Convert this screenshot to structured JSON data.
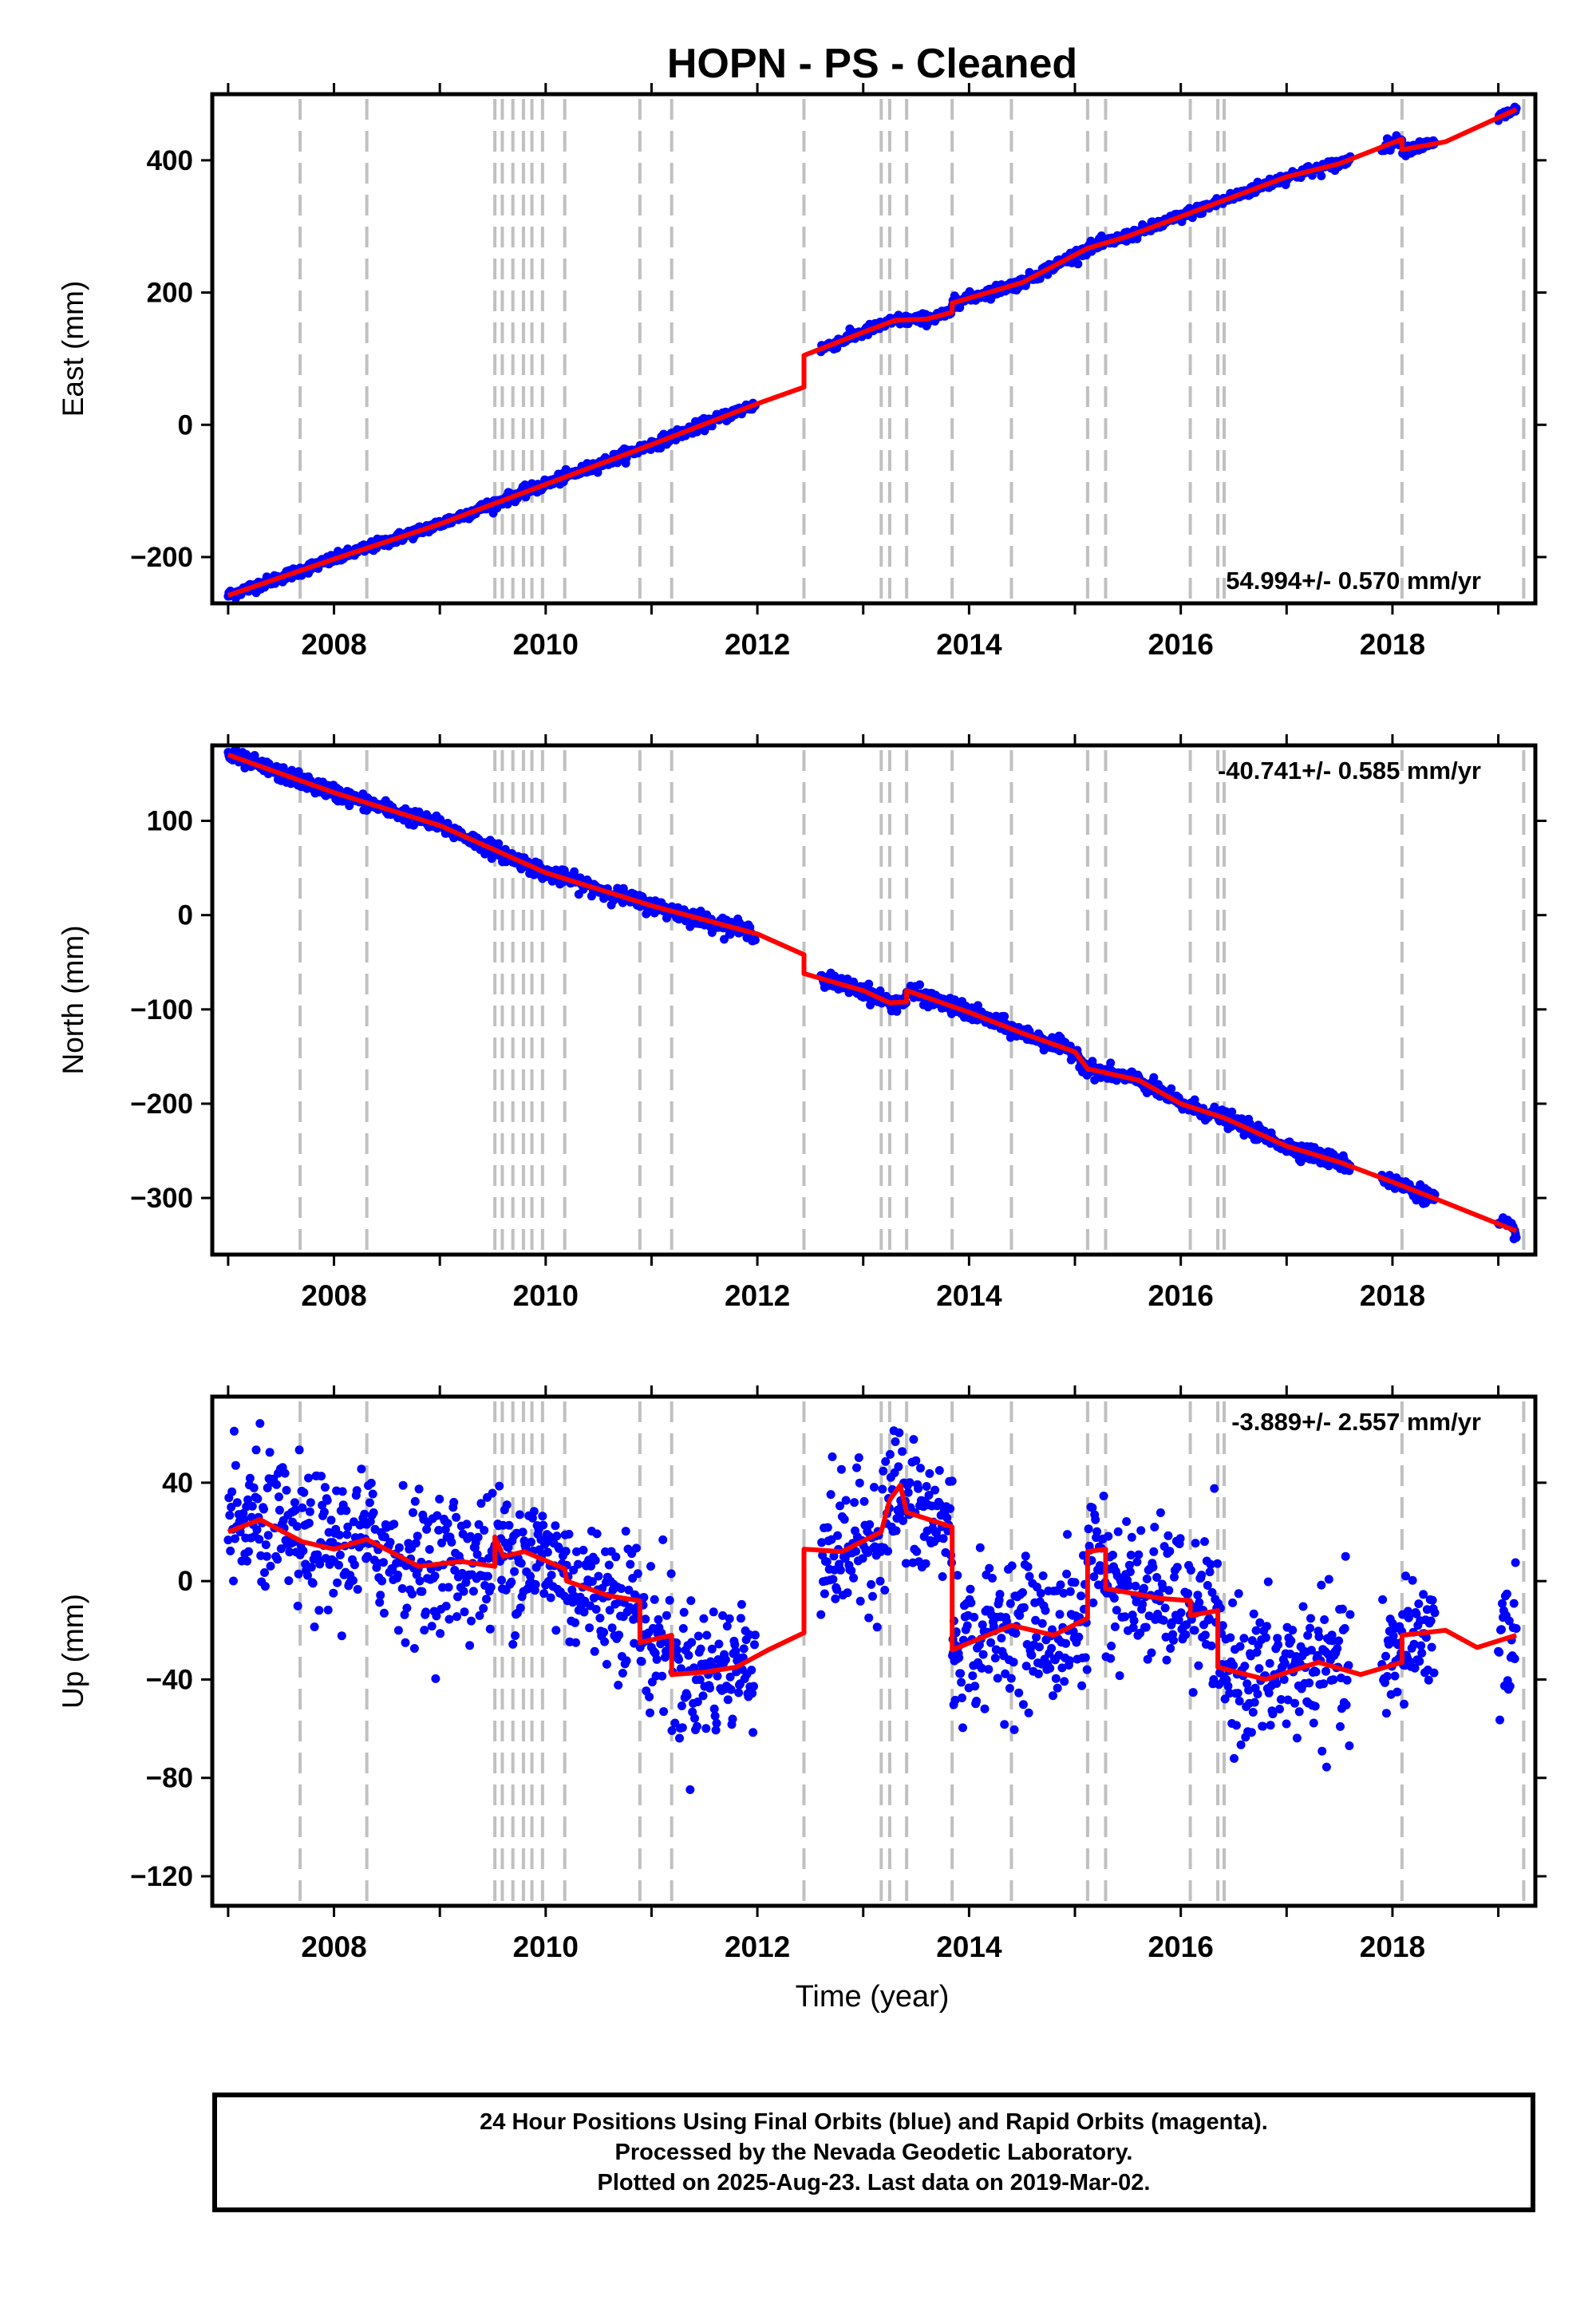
{
  "title": "HOPN  - PS - Cleaned",
  "x_label": "Time (year)",
  "footer": {
    "line1": "24 Hour Positions Using Final Orbits (blue) and Rapid Orbits (magenta).",
    "line2": "Processed by the Nevada Geodetic Laboratory.",
    "line3": "Plotted on 2025-Aug-23. Last data on 2019-Mar-02."
  },
  "colors": {
    "points": "#0000ff",
    "model": "#ff0000",
    "event_lines": "#c0c0c0",
    "frame": "#000000"
  },
  "chart_data": [
    {
      "type": "scatter",
      "ylabel": "East (mm)",
      "rate_label": "54.994+/- 0.570 mm/yr",
      "rate_position": "bottom-right",
      "xlim": [
        2006.85,
        2019.35
      ],
      "ylim": [
        -270,
        500
      ],
      "xticks": [
        2008,
        2010,
        2012,
        2014,
        2016,
        2018
      ],
      "yticks": [
        -200,
        0,
        200,
        400
      ],
      "grid": false,
      "event_lines": [
        2007.68,
        2008.31,
        2009.52,
        2009.59,
        2009.69,
        2009.79,
        2009.87,
        2009.97,
        2010.18,
        2010.89,
        2011.19,
        2012.44,
        2013.17,
        2013.25,
        2013.41,
        2013.84,
        2014.4,
        2015.12,
        2015.29,
        2016.09,
        2016.35,
        2016.41,
        2018.09,
        2019.24
      ],
      "model": [
        {
          "x": 2007.0,
          "y": -258
        },
        {
          "x": 2008.0,
          "y": -203
        },
        {
          "x": 2009.0,
          "y": -150
        },
        {
          "x": 2010.0,
          "y": -90
        },
        {
          "x": 2011.0,
          "y": -30
        },
        {
          "x": 2012.0,
          "y": 32
        },
        {
          "x": 2012.44,
          "y": 57
        },
        {
          "x": 2012.44,
          "y": 105
        },
        {
          "x": 2013.0,
          "y": 140
        },
        {
          "x": 2013.3,
          "y": 158
        },
        {
          "x": 2013.6,
          "y": 160
        },
        {
          "x": 2013.84,
          "y": 170
        },
        {
          "x": 2013.84,
          "y": 184
        },
        {
          "x": 2014.5,
          "y": 215
        },
        {
          "x": 2015.12,
          "y": 267
        },
        {
          "x": 2015.5,
          "y": 285
        },
        {
          "x": 2016.0,
          "y": 315
        },
        {
          "x": 2016.5,
          "y": 345
        },
        {
          "x": 2017.0,
          "y": 375
        },
        {
          "x": 2017.5,
          "y": 395
        },
        {
          "x": 2018.09,
          "y": 432
        },
        {
          "x": 2018.09,
          "y": 416
        },
        {
          "x": 2018.5,
          "y": 428
        },
        {
          "x": 2019.17,
          "y": 477
        }
      ],
      "data_ranges": [
        [
          2007.0,
          2011.98
        ],
        [
          2012.6,
          2013.9
        ],
        [
          2013.84,
          2017.6
        ],
        [
          2017.9,
          2018.4
        ],
        [
          2019.0,
          2019.17
        ]
      ],
      "scatter_sigma": 4
    },
    {
      "type": "scatter",
      "ylabel": "North (mm)",
      "rate_label": "-40.741+/- 0.585 mm/yr",
      "rate_position": "top-right",
      "xlim": [
        2006.85,
        2019.35
      ],
      "ylim": [
        -360,
        180
      ],
      "xticks": [
        2008,
        2010,
        2012,
        2014,
        2016,
        2018
      ],
      "yticks": [
        -300,
        -200,
        -100,
        0,
        100
      ],
      "grid": false,
      "event_lines": [
        2007.68,
        2008.31,
        2009.52,
        2009.59,
        2009.69,
        2009.79,
        2009.87,
        2009.97,
        2010.18,
        2010.89,
        2011.19,
        2012.44,
        2013.17,
        2013.25,
        2013.41,
        2013.84,
        2014.4,
        2015.12,
        2015.29,
        2016.09,
        2016.35,
        2016.41,
        2018.09,
        2019.24
      ],
      "model": [
        {
          "x": 2007.0,
          "y": 170
        },
        {
          "x": 2008.0,
          "y": 130
        },
        {
          "x": 2009.0,
          "y": 95
        },
        {
          "x": 2010.0,
          "y": 45
        },
        {
          "x": 2011.0,
          "y": 10
        },
        {
          "x": 2012.0,
          "y": -20
        },
        {
          "x": 2012.44,
          "y": -42
        },
        {
          "x": 2012.44,
          "y": -62
        },
        {
          "x": 2013.0,
          "y": -80
        },
        {
          "x": 2013.25,
          "y": -93
        },
        {
          "x": 2013.41,
          "y": -92
        },
        {
          "x": 2013.41,
          "y": -80
        },
        {
          "x": 2014.0,
          "y": -103
        },
        {
          "x": 2014.5,
          "y": -125
        },
        {
          "x": 2015.0,
          "y": -145
        },
        {
          "x": 2015.12,
          "y": -163
        },
        {
          "x": 2015.6,
          "y": -175
        },
        {
          "x": 2016.0,
          "y": -200
        },
        {
          "x": 2016.41,
          "y": -215
        },
        {
          "x": 2017.0,
          "y": -245
        },
        {
          "x": 2017.5,
          "y": -262
        },
        {
          "x": 2018.0,
          "y": -283
        },
        {
          "x": 2018.5,
          "y": -305
        },
        {
          "x": 2019.17,
          "y": -335
        }
      ],
      "data_ranges": [
        [
          2007.0,
          2011.98
        ],
        [
          2012.6,
          2013.9
        ],
        [
          2013.84,
          2017.6
        ],
        [
          2017.9,
          2018.4
        ],
        [
          2019.0,
          2019.17
        ]
      ],
      "scatter_sigma": 4
    },
    {
      "type": "scatter",
      "ylabel": "Up (mm)",
      "rate_label": "-3.889+/- 2.557 mm/yr",
      "rate_position": "top-right",
      "xlim": [
        2006.85,
        2019.35
      ],
      "ylim": [
        -132,
        75
      ],
      "xticks": [
        2008,
        2010,
        2012,
        2014,
        2016,
        2018
      ],
      "yticks": [
        -120,
        -80,
        -40,
        0,
        40
      ],
      "grid": false,
      "event_lines": [
        2007.68,
        2008.31,
        2009.52,
        2009.59,
        2009.69,
        2009.79,
        2009.87,
        2009.97,
        2010.18,
        2010.89,
        2011.19,
        2012.44,
        2013.17,
        2013.25,
        2013.41,
        2013.84,
        2014.4,
        2015.12,
        2015.29,
        2016.09,
        2016.35,
        2016.41,
        2018.09,
        2019.24
      ],
      "model": [
        {
          "x": 2007.0,
          "y": 20
        },
        {
          "x": 2007.3,
          "y": 25
        },
        {
          "x": 2007.7,
          "y": 16
        },
        {
          "x": 2008.0,
          "y": 13
        },
        {
          "x": 2008.31,
          "y": 17
        },
        {
          "x": 2008.8,
          "y": 6
        },
        {
          "x": 2009.2,
          "y": 8
        },
        {
          "x": 2009.52,
          "y": 6
        },
        {
          "x": 2009.52,
          "y": 18
        },
        {
          "x": 2009.6,
          "y": 10
        },
        {
          "x": 2009.8,
          "y": 12
        },
        {
          "x": 2010.18,
          "y": 5
        },
        {
          "x": 2010.2,
          "y": 0
        },
        {
          "x": 2010.6,
          "y": -6
        },
        {
          "x": 2010.89,
          "y": -8
        },
        {
          "x": 2010.89,
          "y": -25
        },
        {
          "x": 2011.19,
          "y": -22
        },
        {
          "x": 2011.19,
          "y": -38
        },
        {
          "x": 2011.5,
          "y": -37
        },
        {
          "x": 2011.8,
          "y": -35
        },
        {
          "x": 2012.1,
          "y": -28
        },
        {
          "x": 2012.44,
          "y": -21
        },
        {
          "x": 2012.44,
          "y": 13
        },
        {
          "x": 2012.8,
          "y": 12
        },
        {
          "x": 2013.17,
          "y": 20
        },
        {
          "x": 2013.25,
          "y": 33
        },
        {
          "x": 2013.35,
          "y": 39
        },
        {
          "x": 2013.41,
          "y": 28
        },
        {
          "x": 2013.84,
          "y": 22
        },
        {
          "x": 2013.84,
          "y": -28
        },
        {
          "x": 2014.4,
          "y": -18
        },
        {
          "x": 2014.8,
          "y": -22
        },
        {
          "x": 2015.12,
          "y": -15
        },
        {
          "x": 2015.12,
          "y": 12
        },
        {
          "x": 2015.29,
          "y": 13
        },
        {
          "x": 2015.29,
          "y": -3
        },
        {
          "x": 2015.8,
          "y": -7
        },
        {
          "x": 2016.09,
          "y": -8
        },
        {
          "x": 2016.09,
          "y": -14
        },
        {
          "x": 2016.35,
          "y": -12
        },
        {
          "x": 2016.35,
          "y": -35
        },
        {
          "x": 2016.8,
          "y": -40
        },
        {
          "x": 2017.3,
          "y": -33
        },
        {
          "x": 2017.7,
          "y": -38
        },
        {
          "x": 2018.09,
          "y": -33
        },
        {
          "x": 2018.09,
          "y": -22
        },
        {
          "x": 2018.5,
          "y": -20
        },
        {
          "x": 2018.8,
          "y": -27
        },
        {
          "x": 2019.17,
          "y": -22
        }
      ],
      "data_ranges": [
        [
          2007.0,
          2011.98
        ],
        [
          2012.6,
          2013.9
        ],
        [
          2013.84,
          2017.6
        ],
        [
          2017.9,
          2018.4
        ],
        [
          2019.0,
          2019.17
        ]
      ],
      "scatter_sigma": 14
    }
  ]
}
